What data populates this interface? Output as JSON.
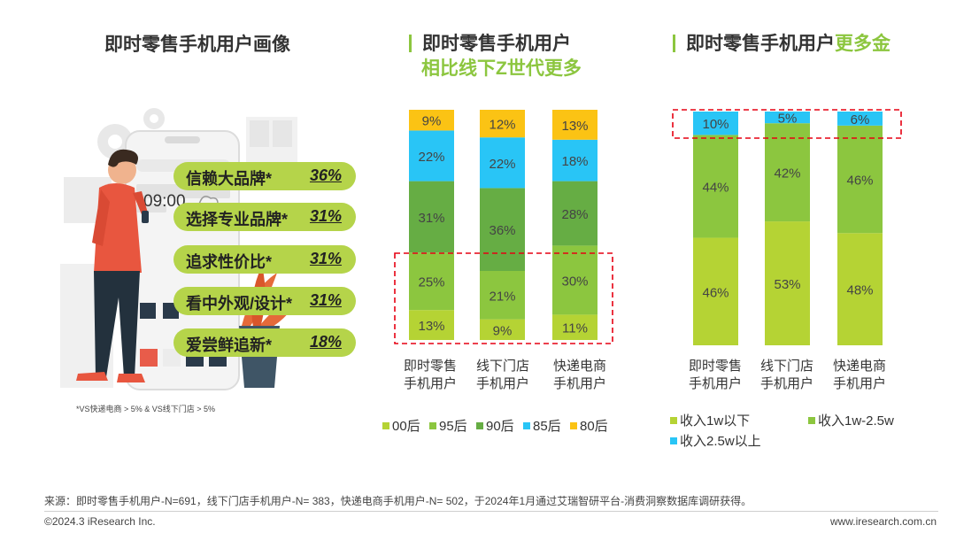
{
  "panel1": {
    "title": "即时零售手机用户画像",
    "phone_time": "09:00",
    "items": [
      {
        "label": "信赖大品牌*",
        "value": "36%"
      },
      {
        "label": "选择专业品牌*",
        "value": "31%"
      },
      {
        "label": "追求性价比*",
        "value": "31%"
      },
      {
        "label": "看中外观/设计*",
        "value": "31%"
      },
      {
        "label": "爱尝鲜追新*",
        "value": "18%"
      }
    ],
    "note": "*VS快递电商 > 5% & VS线下门店 > 5%"
  },
  "panel2": {
    "title_line1": "即时零售手机用户",
    "title_line2": "相比线下Z世代更多"
  },
  "panel3": {
    "title_prefix": "即时零售手机用户",
    "title_highlight": "更多金"
  },
  "colors": {
    "c00": "#b5d334",
    "c95": "#8cc63f",
    "c90": "#66ad44",
    "c85": "#29c5f6",
    "c80": "#fbc314",
    "inc_low": "#b5d334",
    "inc_mid": "#8cc63f",
    "inc_high": "#29c5f6",
    "accent": "#8cc63f",
    "dash": "#e60012"
  },
  "chart_data": [
    {
      "type": "bar",
      "stacked": true,
      "categories": [
        "即时零售\n手机用户",
        "线下门店\n手机用户",
        "快递电商\n手机用户"
      ],
      "series": [
        {
          "name": "00后",
          "values": [
            13,
            9,
            11
          ]
        },
        {
          "name": "95后",
          "values": [
            25,
            21,
            30
          ]
        },
        {
          "name": "90后",
          "values": [
            31,
            36,
            28
          ]
        },
        {
          "name": "85后",
          "values": [
            22,
            22,
            18
          ]
        },
        {
          "name": "80后",
          "values": [
            9,
            12,
            13
          ]
        }
      ],
      "value_labels": [
        [
          "13%",
          "25%",
          "31%",
          "22%",
          "9%"
        ],
        [
          "9%",
          "21%",
          "36%",
          "22%",
          "12%"
        ],
        [
          "11%",
          "30%",
          "28%",
          "18%",
          "13%"
        ]
      ],
      "legend_position": "bottom"
    },
    {
      "type": "bar",
      "stacked": true,
      "categories": [
        "即时零售\n手机用户",
        "线下门店\n手机用户",
        "快递电商\n手机用户"
      ],
      "series": [
        {
          "name": "收入1w以下",
          "values": [
            46,
            53,
            48
          ]
        },
        {
          "name": "收入1w-2.5w",
          "values": [
            44,
            42,
            46
          ]
        },
        {
          "name": "收入2.5w以上",
          "values": [
            10,
            5,
            6
          ]
        }
      ],
      "value_labels": [
        [
          "46%",
          "44%",
          "10%"
        ],
        [
          "53%",
          "42%",
          "5%"
        ],
        [
          "48%",
          "46%",
          "6%"
        ]
      ],
      "legend_position": "bottom"
    }
  ],
  "footer": {
    "source": "来源：即时零售手机用户-N=691，线下门店手机用户-N= 383，快递电商手机用户-N= 502，于2024年1月通过艾瑞智研平台-消费洞察数据库调研获得。",
    "copyright": "©2024.3 iResearch Inc.",
    "site": "www.iresearch.com.cn"
  }
}
